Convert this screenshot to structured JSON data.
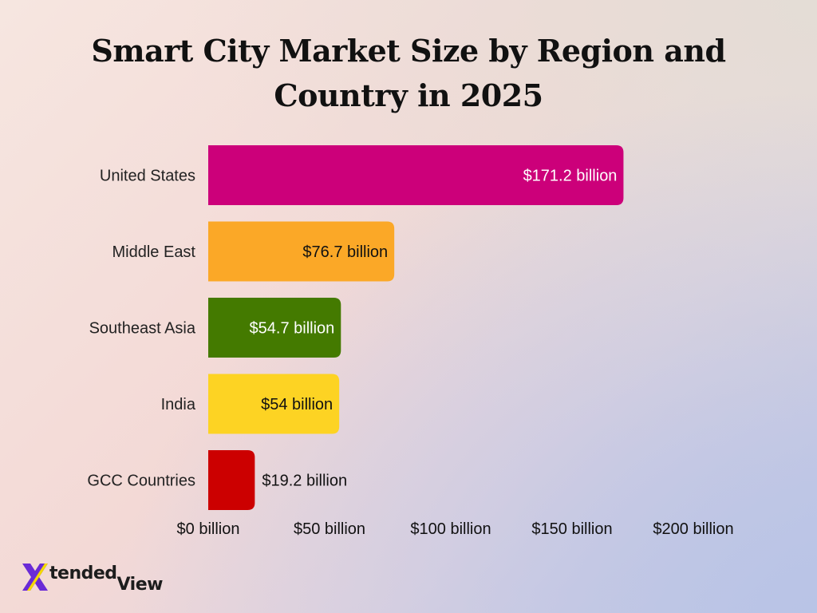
{
  "chart_data": {
    "type": "bar",
    "orientation": "horizontal",
    "title": "Smart City Market Size by Region and Country in 2025",
    "categories": [
      "United States",
      "Middle East",
      "Southeast Asia",
      "India",
      "GCC Countries"
    ],
    "values": [
      171.2,
      76.7,
      54.7,
      54,
      19.2
    ],
    "value_labels": [
      "$171.2 billion",
      "$76.7 billion",
      "$54.7 billion",
      "$54 billion",
      "$19.2 billion"
    ],
    "colors": [
      "#cc007a",
      "#fba827",
      "#447a00",
      "#fdd323",
      "#cc0000"
    ],
    "label_colors": [
      "#ffffff",
      "#111111",
      "#ffffff",
      "#111111",
      "#111111"
    ],
    "xlim": [
      0,
      200
    ],
    "x_ticks": [
      0,
      50,
      100,
      150,
      200
    ],
    "x_tick_labels": [
      "$0 billion",
      "$50 billion",
      "$100 billion",
      "$150 billion",
      "$200 billion"
    ],
    "xlabel": "",
    "ylabel": "",
    "grid": false,
    "legend": "none"
  },
  "logo": {
    "text_part1": "tended",
    "text_part2": "View",
    "accent_color": "#6a2bd6",
    "mark_color": "#f5d800"
  }
}
